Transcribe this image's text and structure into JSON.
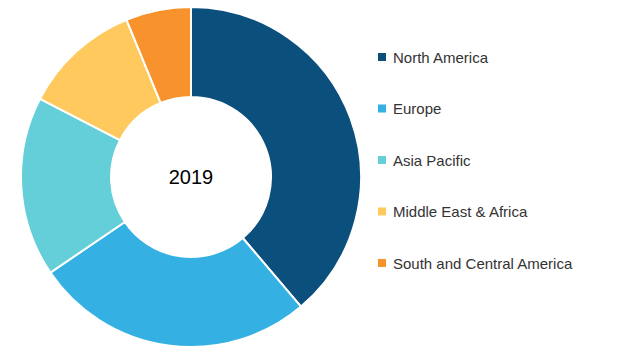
{
  "chart_data": {
    "type": "pie",
    "title": "2019",
    "categories": [
      "North America",
      "Europe",
      "Asia Pacific",
      "Middle East & Africa",
      "South and Central America"
    ],
    "values": [
      38.8,
      26.7,
      17.1,
      11.2,
      6.2
    ],
    "colors": [
      "#0b4f7d",
      "#35b0e3",
      "#64cfd8",
      "#ffc95e",
      "#f7922c"
    ],
    "legend": "right"
  }
}
